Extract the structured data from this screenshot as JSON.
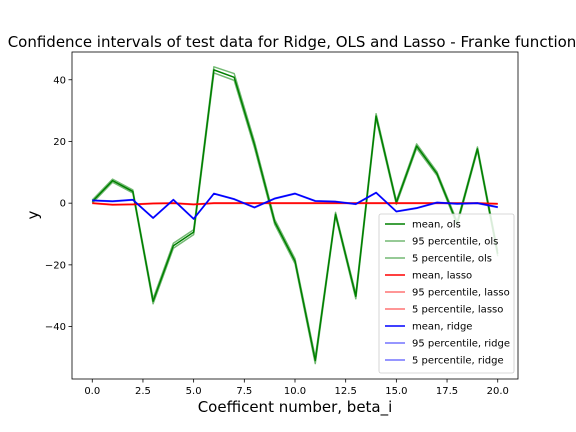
{
  "chart_data": {
    "type": "line",
    "title": "Confidence intervals of test data for Ridge, OLS and Lasso - Franke function",
    "xlabel": "Coefficent number, beta_i",
    "ylabel": "y",
    "xlim": [
      -1.0,
      21.0
    ],
    "ylim": [
      -57,
      49
    ],
    "xticks": [
      0.0,
      2.5,
      5.0,
      7.5,
      10.0,
      12.5,
      15.0,
      17.5,
      20.0
    ],
    "xtick_labels": [
      "0.0",
      "2.5",
      "5.0",
      "7.5",
      "10.0",
      "12.5",
      "15.0",
      "17.5",
      "20.0"
    ],
    "yticks": [
      -40,
      -20,
      0,
      20,
      40
    ],
    "ytick_labels": [
      "−40",
      "−20",
      "0",
      "20",
      "40"
    ],
    "grid": false,
    "legend_position": "lower-right",
    "x": [
      0,
      1,
      2,
      3,
      4,
      5,
      6,
      7,
      8,
      9,
      10,
      11,
      12,
      13,
      14,
      15,
      16,
      17,
      18,
      19,
      20
    ],
    "series": [
      {
        "name": "mean, ols",
        "color": "#008000",
        "opacity": 1.0,
        "width": 1.5,
        "values": [
          0.5,
          7.3,
          3.8,
          -31.8,
          -13.8,
          -9.4,
          43.2,
          40.8,
          19.0,
          -6.1,
          -18.8,
          -51.0,
          -3.6,
          -30.2,
          28.2,
          0.2,
          18.5,
          9.6,
          -6.6,
          17.6,
          -16.4
        ]
      },
      {
        "name": "95 percentile, ols",
        "color": "#008000",
        "opacity": 0.55,
        "width": 1.5,
        "values": [
          1.0,
          7.8,
          4.3,
          -31.0,
          -13.0,
          -8.6,
          44.2,
          42.0,
          20.0,
          -5.3,
          -18.0,
          -50.0,
          -3.0,
          -29.4,
          29.0,
          0.8,
          19.2,
          10.2,
          -6.0,
          18.2,
          -15.6
        ]
      },
      {
        "name": "5 percentile, ols",
        "color": "#008000",
        "opacity": 0.55,
        "width": 1.5,
        "values": [
          0.0,
          6.8,
          3.3,
          -32.6,
          -14.6,
          -10.2,
          42.2,
          39.8,
          18.0,
          -6.9,
          -19.6,
          -52.0,
          -4.2,
          -31.0,
          27.4,
          -0.4,
          17.8,
          9.0,
          -7.2,
          17.0,
          -17.2
        ]
      },
      {
        "name": "mean, lasso",
        "color": "#ff0000",
        "opacity": 1.0,
        "width": 1.5,
        "values": [
          0.0,
          -0.5,
          -0.4,
          -0.1,
          0.0,
          -0.4,
          0.0,
          0.0,
          0.0,
          0.0,
          0.0,
          0.0,
          0.0,
          0.0,
          0.0,
          0.0,
          0.0,
          0.0,
          0.0,
          0.0,
          -0.2
        ]
      },
      {
        "name": "95 percentile, lasso",
        "color": "#ff0000",
        "opacity": 0.55,
        "width": 1.5,
        "values": [
          0.1,
          -0.4,
          -0.3,
          0.0,
          0.1,
          -0.3,
          0.1,
          0.1,
          0.1,
          0.1,
          0.1,
          0.1,
          0.1,
          0.1,
          0.1,
          0.1,
          0.1,
          0.1,
          0.1,
          0.1,
          -0.1
        ]
      },
      {
        "name": "5 percentile, lasso",
        "color": "#ff0000",
        "opacity": 0.55,
        "width": 1.5,
        "values": [
          -0.1,
          -0.6,
          -0.5,
          -0.2,
          -0.1,
          -0.5,
          -0.1,
          -0.1,
          -0.1,
          -0.1,
          -0.1,
          -0.1,
          -0.1,
          -0.1,
          -0.1,
          -0.1,
          -0.1,
          -0.1,
          -0.1,
          -0.1,
          -0.3
        ]
      },
      {
        "name": "mean, ridge",
        "color": "#0000ff",
        "opacity": 1.0,
        "width": 1.5,
        "values": [
          0.9,
          0.6,
          1.1,
          -4.8,
          1.1,
          -5.1,
          3.1,
          1.3,
          -1.4,
          1.5,
          3.1,
          0.7,
          0.5,
          -0.3,
          3.4,
          -2.7,
          -1.6,
          0.2,
          -0.2,
          0.0,
          -1.3
        ]
      },
      {
        "name": "95 percentile, ridge",
        "color": "#0000ff",
        "opacity": 0.55,
        "width": 1.5,
        "values": [
          1.0,
          0.7,
          1.2,
          -4.7,
          1.2,
          -5.0,
          3.2,
          1.4,
          -1.3,
          1.6,
          3.2,
          0.8,
          0.6,
          -0.2,
          3.5,
          -2.6,
          -1.5,
          0.3,
          -0.1,
          0.1,
          -1.2
        ]
      },
      {
        "name": "5 percentile, ridge",
        "color": "#0000ff",
        "opacity": 0.55,
        "width": 1.5,
        "values": [
          0.8,
          0.5,
          1.0,
          -4.9,
          1.0,
          -5.2,
          3.0,
          1.2,
          -1.5,
          1.4,
          3.0,
          0.6,
          0.4,
          -0.4,
          3.3,
          -2.8,
          -1.7,
          0.1,
          -0.3,
          -0.1,
          -1.4
        ]
      }
    ]
  }
}
